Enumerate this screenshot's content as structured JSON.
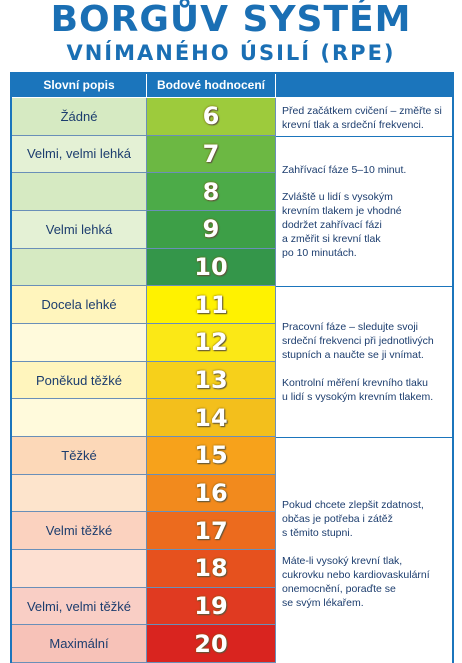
{
  "header": {
    "title": "BORGŮV SYSTÉM",
    "subtitle": "VNÍMANÉHO ÚSILÍ (RPE)"
  },
  "table": {
    "columns": [
      "Slovní popis",
      "Bodové hodnocení"
    ],
    "rows": [
      {
        "score": 6,
        "description": "Žádné"
      },
      {
        "score": 7,
        "description": "Velmi, velmi lehká"
      },
      {
        "score": 8
      },
      {
        "score": 9,
        "description": "Velmi lehká"
      },
      {
        "score": 10
      },
      {
        "score": 11,
        "description": "Docela lehké"
      },
      {
        "score": 12
      },
      {
        "score": 13,
        "description": "Poněkud těžké"
      },
      {
        "score": 14
      },
      {
        "score": 15,
        "description": "Těžké"
      },
      {
        "score": 16
      },
      {
        "score": 17,
        "description": "Velmi těžké"
      },
      {
        "score": 18
      },
      {
        "score": 19,
        "description": "Velmi, velmi těžké"
      },
      {
        "score": 20,
        "description": "Maximální"
      }
    ]
  },
  "notes": [
    {
      "paragraphs": [
        [
          "Před začátkem cvičení – změřte si",
          "krevní tlak a srdeční frekvenci."
        ]
      ]
    },
    {
      "paragraphs": [
        [
          "Zahřívací fáze 5–10 minut."
        ],
        [
          "Zvláště u lidí s vysokým",
          "krevním tlakem je vhodné",
          "dodržet zahřívací fázi",
          "a změřit si krevní tlak",
          "po 10 minutách."
        ]
      ]
    },
    {
      "paragraphs": [
        [
          "Pracovní fáze – sledujte svoji",
          "srdeční frekvenci při jednotlivých",
          "stupních a naučte se ji vnímat."
        ],
        [
          "Kontrolní měření krevního tlaku",
          "u lidí s vysokým krevním tlakem."
        ]
      ]
    },
    {
      "paragraphs": [
        [
          "Pokud chcete zlepšit zdatnost,",
          "občas je potřeba i zátěž",
          "s těmito stupni."
        ],
        [
          "Máte-li vysoký krevní tlak,",
          "cukrovku nebo kardiovaskulární",
          "onemocnění, poraďte se",
          "se svým lékařem."
        ]
      ]
    }
  ]
}
